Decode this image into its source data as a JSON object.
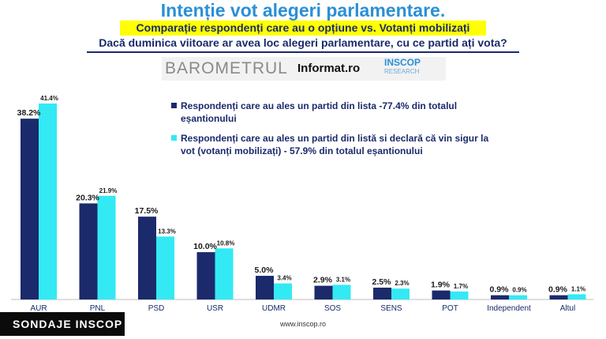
{
  "header": {
    "title": "Intenție vot alegeri parlamentare.",
    "subtitle": "Comparație respondenți care au o opțiune vs. Votanți mobilizați",
    "question": "Dacă duminica viitoare ar avea loc alegeri parlamentare, cu ce partid ați vota?"
  },
  "logos": {
    "barometrul": "BAROMETRUL",
    "informat": "Informat.ro",
    "inscop": "INSCOP",
    "inscop_sub": "RESEARCH"
  },
  "footer": {
    "website": "www.inscop.ro",
    "badge": "SONDAJE INSCOP"
  },
  "colors": {
    "series1": "#1b2a6b",
    "series2": "#33e9f4",
    "title": "#2b8fd6",
    "subtitle_bg": "#ffff00"
  },
  "chart_data": {
    "type": "bar",
    "categories": [
      "AUR",
      "PNL",
      "PSD",
      "USR",
      "UDMR",
      "SOS",
      "SENS",
      "POT",
      "Independent",
      "Altul"
    ],
    "series": [
      {
        "name": "Respondenți care au ales un partid din lista -77.4% din totalul eșantionului",
        "legend_lines": [
          "Respondenți care au ales un partid din lista -77.4%  din totalul",
          "eșantionului"
        ],
        "values": [
          38.2,
          20.3,
          17.5,
          10.0,
          5.0,
          2.9,
          2.5,
          1.9,
          0.9,
          0.9
        ],
        "labels": [
          "38.2%",
          "20.3%",
          "17.5%",
          "10.0%",
          "5.0%",
          "2.9%",
          "2.5%",
          "1.9%",
          "0.9%",
          "0.9%"
        ]
      },
      {
        "name": "Respondenți care au ales un partid din listă si declară că vin sigur la vot (votanți mobilizați) - 57.9% din totalul eșantionului",
        "legend_lines": [
          "Respondenți care au ales un partid din listă si declară că vin sigur la",
          "vot (votanți mobilizați) - 57.9%  din totalul eșantionului"
        ],
        "values": [
          41.4,
          21.9,
          13.3,
          10.8,
          3.4,
          3.1,
          2.3,
          1.7,
          0.9,
          1.1
        ],
        "labels": [
          "41.4%",
          "21.9%",
          "13.3%",
          "10.8%",
          "3.4%",
          "3.1%",
          "2.3%",
          "1.7%",
          "0.9%",
          "1.1%"
        ]
      }
    ],
    "ylim": [
      0,
      41.4
    ],
    "grid": false,
    "legend_position": "top-right"
  }
}
